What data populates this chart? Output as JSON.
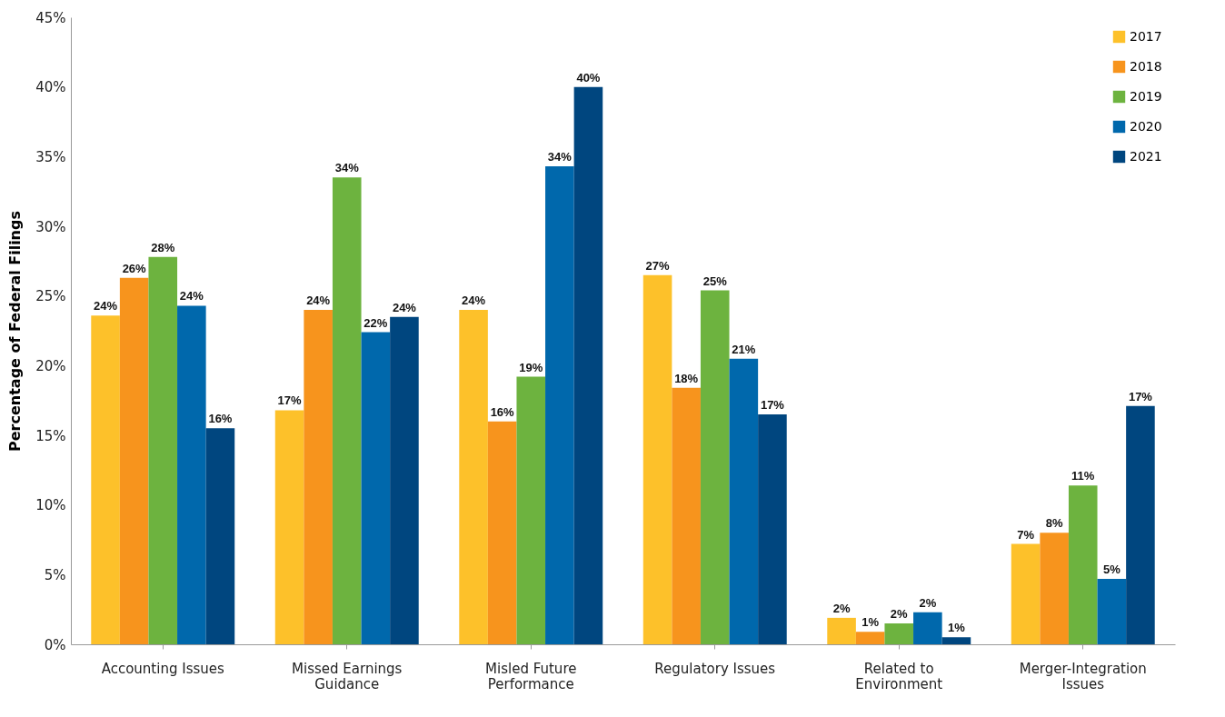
{
  "chart_data": {
    "type": "bar",
    "ylabel": "Percentage of Federal Filings",
    "categories": [
      "Accounting Issues",
      "Missed Earnings Guidance",
      "Misled Future Performance",
      "Regulatory Issues",
      "Related to Environment",
      "Merger-Integration Issues"
    ],
    "series": [
      {
        "name": "2017",
        "color": "#fdc12a",
        "values": [
          23.6,
          16.8,
          24.0,
          26.5,
          1.9,
          7.2
        ],
        "value_labels": [
          "24%",
          "17%",
          "24%",
          "27%",
          "2%",
          "7%"
        ]
      },
      {
        "name": "2018",
        "color": "#f7941d",
        "values": [
          26.3,
          24.0,
          16.0,
          18.4,
          0.9,
          8.0
        ],
        "value_labels": [
          "26%",
          "24%",
          "16%",
          "18%",
          "1%",
          "8%"
        ]
      },
      {
        "name": "2019",
        "color": "#6db33f",
        "values": [
          27.8,
          33.5,
          19.2,
          25.4,
          1.5,
          11.4
        ],
        "value_labels": [
          "28%",
          "34%",
          "19%",
          "25%",
          "2%",
          "11%"
        ]
      },
      {
        "name": "2020",
        "color": "#0068ac",
        "values": [
          24.3,
          22.4,
          34.3,
          20.5,
          2.3,
          4.7
        ],
        "value_labels": [
          "24%",
          "22%",
          "34%",
          "21%",
          "2%",
          "5%"
        ]
      },
      {
        "name": "2021",
        "color": "#00467f",
        "values": [
          15.5,
          23.5,
          40.0,
          16.5,
          0.5,
          17.1
        ],
        "value_labels": [
          "16%",
          "24%",
          "40%",
          "17%",
          "1%",
          "17%"
        ]
      }
    ],
    "ylim": [
      0,
      45
    ],
    "yticks": [
      {
        "value": 0,
        "label": "0%"
      },
      {
        "value": 5,
        "label": "5%"
      },
      {
        "value": 10,
        "label": "10%"
      },
      {
        "value": 15,
        "label": "15%"
      },
      {
        "value": 20,
        "label": "20%"
      },
      {
        "value": 25,
        "label": "25%"
      },
      {
        "value": 30,
        "label": "30%"
      },
      {
        "value": 35,
        "label": "35%"
      },
      {
        "value": 40,
        "label": "40%"
      },
      {
        "value": 45,
        "label": "45%"
      }
    ],
    "grid": false,
    "legend": "top right"
  }
}
